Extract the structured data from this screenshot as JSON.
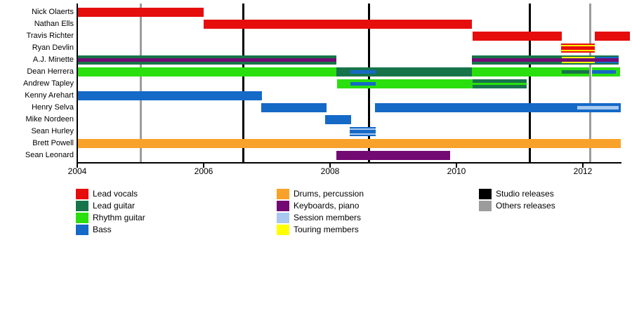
{
  "chart_data": {
    "type": "timeline-gantt",
    "title": "Band members timeline (no on-image title shown)",
    "x_axis": {
      "tick_years": [
        2004,
        2006,
        2008,
        2010,
        2012
      ],
      "range_start": 2004,
      "range_end": 2012.6,
      "grid": false
    },
    "colors": {
      "lead_vocals": "#e60d0d",
      "lead_guitar": "#17744a",
      "rhythm_guitar": "#2adf0d",
      "bass": "#1569c7",
      "drums": "#f9a22b",
      "keyboards": "#730a73",
      "session": "#a8c8f0",
      "touring": "#ffff00",
      "studio": "#000000",
      "others": "#9c9c9c"
    },
    "members": [
      {
        "name": "Nick Olaerts",
        "segments": [
          {
            "start": 2004.0,
            "end": 2006.0,
            "role": "lead_vocals"
          }
        ]
      },
      {
        "name": "Nathan Ells",
        "segments": [
          {
            "start": 2006.0,
            "end": 2010.24,
            "role": "lead_vocals"
          }
        ]
      },
      {
        "name": "Travis Richter",
        "segments": [
          {
            "start": 2010.26,
            "end": 2011.67,
            "role": "lead_vocals"
          },
          {
            "start": 2012.19,
            "end": 2012.74,
            "role": "lead_vocals"
          }
        ]
      },
      {
        "name": "Ryan Devlin",
        "segments": [
          {
            "start": 2011.66,
            "end": 2012.19,
            "role": "lead_vocals",
            "overlay": "touring"
          }
        ]
      },
      {
        "name": "A.J. Minette",
        "segments": [
          {
            "start": 2004.0,
            "end": 2008.1,
            "role": "lead_guitar",
            "center": [
              {
                "start": 2004.0,
                "end": 2008.1,
                "role": "keyboards"
              }
            ]
          },
          {
            "start": 2010.24,
            "end": 2011.67,
            "role": "lead_guitar",
            "center": [
              {
                "start": 2010.24,
                "end": 2011.67,
                "role": "keyboards"
              }
            ]
          },
          {
            "start": 2011.67,
            "end": 2012.19,
            "role": "lead_guitar",
            "overlay": "touring",
            "center": [
              {
                "start": 2011.67,
                "end": 2012.19,
                "role": "keyboards"
              }
            ]
          },
          {
            "start": 2012.19,
            "end": 2012.57,
            "role": "lead_guitar",
            "overlay": "bass",
            "center": [
              {
                "start": 2012.19,
                "end": 2012.57,
                "role": "keyboards"
              }
            ]
          }
        ]
      },
      {
        "name": "Dean Herrera",
        "segments": [
          {
            "start": 2004.0,
            "end": 2008.1,
            "role": "rhythm_guitar"
          },
          {
            "start": 2008.1,
            "end": 2010.24,
            "role": "lead_guitar",
            "center": [
              {
                "start": 2008.32,
                "end": 2008.72,
                "role": "bass"
              }
            ]
          },
          {
            "start": 2010.24,
            "end": 2012.105,
            "role": "rhythm_guitar",
            "center": [
              {
                "start": 2011.67,
                "end": 2012.105,
                "role": "lead_guitar"
              }
            ]
          },
          {
            "start": 2012.145,
            "end": 2012.59,
            "role": "rhythm_guitar",
            "center": [
              {
                "start": 2012.145,
                "end": 2012.52,
                "role": "bass"
              }
            ]
          }
        ]
      },
      {
        "name": "Andrew Tapley",
        "segments": [
          {
            "start": 2008.11,
            "end": 2010.26,
            "role": "rhythm_guitar",
            "center": [
              {
                "start": 2008.32,
                "end": 2008.72,
                "role": "bass"
              }
            ]
          },
          {
            "start": 2010.26,
            "end": 2011.11,
            "role": "lead_guitar",
            "center": [
              {
                "start": 2010.26,
                "end": 2011.11,
                "role": "rhythm_guitar",
                "thin": true
              }
            ]
          }
        ]
      },
      {
        "name": "Kenny Arehart",
        "segments": [
          {
            "start": 2004.0,
            "end": 2006.92,
            "role": "bass"
          }
        ]
      },
      {
        "name": "Henry Selva",
        "segments": [
          {
            "start": 2006.91,
            "end": 2007.94,
            "role": "bass"
          },
          {
            "start": 2008.71,
            "end": 2012.6,
            "role": "bass",
            "center": [
              {
                "start": 2011.91,
                "end": 2012.57,
                "role": "session"
              }
            ]
          }
        ]
      },
      {
        "name": "Mike Nordeen",
        "segments": [
          {
            "start": 2007.92,
            "end": 2008.33,
            "role": "bass"
          }
        ]
      },
      {
        "name": "Sean Hurley",
        "segments": [
          {
            "start": 2008.31,
            "end": 2008.72,
            "role": "bass",
            "overlay": "session"
          }
        ]
      },
      {
        "name": "Brett Powell",
        "segments": [
          {
            "start": 2004.0,
            "end": 2012.6,
            "role": "drums"
          }
        ]
      },
      {
        "name": "Sean Leonard",
        "segments": [
          {
            "start": 2008.1,
            "end": 2009.9,
            "role": "keyboards"
          }
        ]
      }
    ],
    "releases": [
      {
        "year": 2005.0,
        "type": "others"
      },
      {
        "year": 2006.63,
        "type": "studio"
      },
      {
        "year": 2008.62,
        "type": "studio"
      },
      {
        "year": 2011.16,
        "type": "studio"
      },
      {
        "year": 2012.12,
        "type": "others"
      }
    ],
    "legend": {
      "columns": [
        {
          "items": [
            {
              "key": "lead_vocals",
              "label": "Lead vocals"
            },
            {
              "key": "lead_guitar",
              "label": "Lead guitar"
            },
            {
              "key": "rhythm_guitar",
              "label": "Rhythm guitar"
            },
            {
              "key": "bass",
              "label": "Bass"
            }
          ]
        },
        {
          "items": [
            {
              "key": "drums",
              "label": "Drums, percussion"
            },
            {
              "key": "keyboards",
              "label": "Keyboards, piano"
            },
            {
              "key": "session",
              "label": "Session members"
            },
            {
              "key": "touring",
              "label": "Touring members"
            }
          ]
        },
        {
          "items": [
            {
              "key": "studio",
              "label": "Studio releases"
            },
            {
              "key": "others",
              "label": "Others releases"
            }
          ]
        }
      ]
    }
  }
}
